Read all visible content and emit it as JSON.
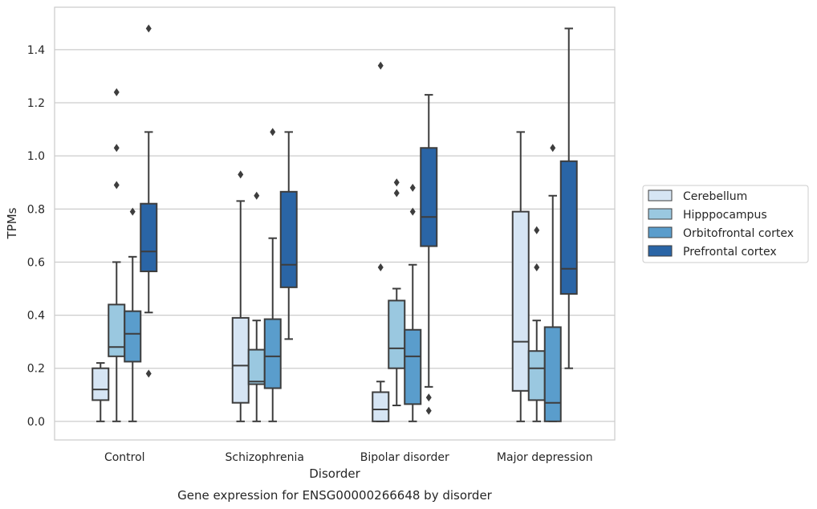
{
  "caption": "Gene expression for ENSG00000266648 by disorder",
  "chart_data": {
    "type": "box",
    "title": "",
    "xlabel": "Disorder",
    "ylabel": "TPMs",
    "ylim": [
      -0.07,
      1.56
    ],
    "yticks": [
      "0.0",
      "0.2",
      "0.4",
      "0.6",
      "0.8",
      "1.0",
      "1.2",
      "1.4"
    ],
    "grid": "horizontal",
    "legend_position": "right",
    "categories": [
      "Control",
      "Schizophrenia",
      "Bipolar disorder",
      "Major depression"
    ],
    "series": [
      {
        "name": "Cerebellum",
        "color": "#d6e5f4",
        "boxes": [
          {
            "whislo": 0.0,
            "q1": 0.08,
            "med": 0.12,
            "q3": 0.2,
            "whishi": 0.22,
            "fliers": []
          },
          {
            "whislo": 0.0,
            "q1": 0.07,
            "med": 0.21,
            "q3": 0.39,
            "whishi": 0.83,
            "fliers": [
              0.93
            ]
          },
          {
            "whislo": 0.0,
            "q1": 0.0,
            "med": 0.045,
            "q3": 0.11,
            "whishi": 0.15,
            "fliers": [
              0.58,
              1.34
            ]
          },
          {
            "whislo": 0.0,
            "q1": 0.115,
            "med": 0.3,
            "q3": 0.79,
            "whishi": 1.09,
            "fliers": []
          }
        ]
      },
      {
        "name": "Hipppocampus",
        "color": "#9ac8e0",
        "boxes": [
          {
            "whislo": 0.0,
            "q1": 0.245,
            "med": 0.28,
            "q3": 0.44,
            "whishi": 0.6,
            "fliers": [
              0.89,
              1.03,
              1.24
            ]
          },
          {
            "whislo": 0.0,
            "q1": 0.14,
            "med": 0.15,
            "q3": 0.27,
            "whishi": 0.38,
            "fliers": [
              0.85
            ]
          },
          {
            "whislo": 0.06,
            "q1": 0.2,
            "med": 0.275,
            "q3": 0.455,
            "whishi": 0.5,
            "fliers": [
              0.86,
              0.9
            ]
          },
          {
            "whislo": 0.0,
            "q1": 0.08,
            "med": 0.2,
            "q3": 0.265,
            "whishi": 0.38,
            "fliers": [
              0.58,
              0.72
            ]
          }
        ]
      },
      {
        "name": "Orbitofrontal cortex",
        "color": "#5a9dcc",
        "boxes": [
          {
            "whislo": 0.0,
            "q1": 0.225,
            "med": 0.33,
            "q3": 0.415,
            "whishi": 0.62,
            "fliers": [
              0.79
            ]
          },
          {
            "whislo": 0.0,
            "q1": 0.125,
            "med": 0.245,
            "q3": 0.385,
            "whishi": 0.69,
            "fliers": [
              1.09
            ]
          },
          {
            "whislo": 0.0,
            "q1": 0.065,
            "med": 0.245,
            "q3": 0.345,
            "whishi": 0.59,
            "fliers": [
              0.79,
              0.88
            ]
          },
          {
            "whislo": 0.0,
            "q1": 0.0,
            "med": 0.07,
            "q3": 0.355,
            "whishi": 0.85,
            "fliers": [
              1.03
            ]
          }
        ]
      },
      {
        "name": "Prefrontal cortex",
        "color": "#2a65a6",
        "boxes": [
          {
            "whislo": 0.41,
            "q1": 0.565,
            "med": 0.64,
            "q3": 0.82,
            "whishi": 1.09,
            "fliers": [
              0.18,
              1.48
            ]
          },
          {
            "whislo": 0.31,
            "q1": 0.505,
            "med": 0.59,
            "q3": 0.865,
            "whishi": 1.09,
            "fliers": []
          },
          {
            "whislo": 0.13,
            "q1": 0.66,
            "med": 0.77,
            "q3": 1.03,
            "whishi": 1.23,
            "fliers": [
              0.04,
              0.09
            ]
          },
          {
            "whislo": 0.2,
            "q1": 0.48,
            "med": 0.575,
            "q3": 0.98,
            "whishi": 1.48,
            "fliers": []
          }
        ]
      }
    ]
  }
}
